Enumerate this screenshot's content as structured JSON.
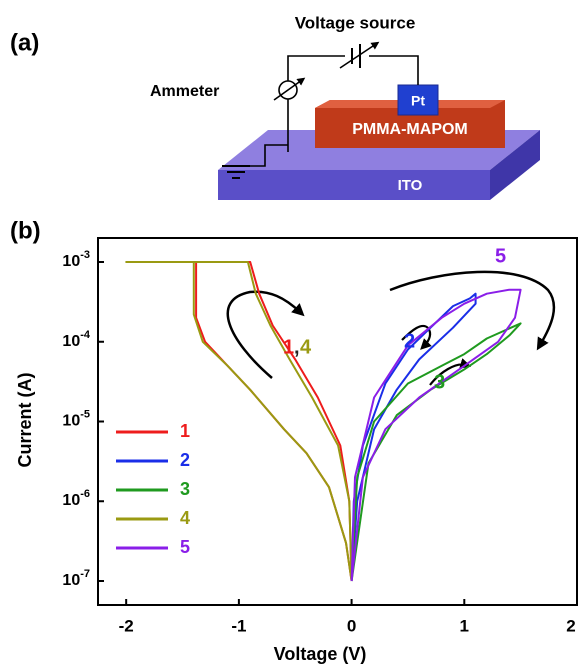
{
  "diagram": {
    "panel_label": "(a)",
    "labels": {
      "voltage_source": "Voltage source",
      "ammeter": "Ammeter",
      "electrode": "Pt",
      "film": "PMMA-MAPOM",
      "substrate": "ITO"
    }
  },
  "chart_data": {
    "type": "line",
    "panel_label": "(b)",
    "x_label": "Voltage (V)",
    "y_label": "Current (A)",
    "log_y": true,
    "xlim": [
      -2.25,
      2.0
    ],
    "xticks": [
      -2,
      -1,
      0,
      1,
      2
    ],
    "ylim": [
      5e-08,
      0.002
    ],
    "yticks": [
      {
        "value": 1e-07,
        "label": "10-7"
      },
      {
        "value": 1e-06,
        "label": "10-6"
      },
      {
        "value": 1e-05,
        "label": "10-5"
      },
      {
        "value": 0.0001,
        "label": "10-4"
      },
      {
        "value": 0.001,
        "label": "10-3"
      }
    ],
    "legend_position": "center-left",
    "series": [
      {
        "name": "1",
        "color": "#ee1c1c",
        "x": [
          0,
          -0.02,
          -0.1,
          -0.3,
          -0.5,
          -0.7,
          -0.82,
          -0.9,
          -1.38,
          -1.38,
          -1.3,
          -1.1,
          -0.9,
          -0.6,
          -0.4,
          -0.2,
          -0.05,
          0
        ],
        "values": [
          1e-07,
          1e-06,
          5e-06,
          2e-05,
          6e-05,
          0.00016,
          0.0004,
          0.001,
          0.001,
          0.0002,
          0.0001,
          5e-05,
          2.5e-05,
          8e-06,
          4e-06,
          1.5e-06,
          3e-07,
          1e-07
        ]
      },
      {
        "name": "2",
        "color": "#1a2ee8",
        "x": [
          0,
          0.02,
          0.1,
          0.3,
          0.5,
          0.7,
          0.9,
          1.05,
          1.1,
          1.1,
          0.9,
          0.6,
          0.4,
          0.2,
          0.05,
          0
        ],
        "values": [
          1e-07,
          1e-06,
          5e-06,
          3e-05,
          8e-05,
          0.00015,
          0.00028,
          0.00035,
          0.0004,
          0.0003,
          0.00015,
          6e-05,
          2.5e-05,
          8e-06,
          1e-06,
          1e-07
        ]
      },
      {
        "name": "3",
        "color": "#1f9a1f",
        "x": [
          0,
          0.05,
          0.2,
          0.5,
          0.8,
          1.0,
          1.2,
          1.5,
          1.4,
          1.2,
          1.0,
          0.7,
          0.4,
          0.15,
          0
        ],
        "values": [
          1e-07,
          2e-06,
          1e-05,
          3e-05,
          5e-05,
          7e-05,
          0.00011,
          0.00017,
          0.00012,
          7e-05,
          4.5e-05,
          2.5e-05,
          1.2e-05,
          3e-06,
          1e-07
        ]
      },
      {
        "name": "4",
        "color": "#9a9a12",
        "x": [
          0,
          -0.02,
          -0.12,
          -0.35,
          -0.55,
          -0.72,
          -0.85,
          -0.92,
          -2.0,
          -1.4,
          -1.4,
          -1.32,
          -1.1,
          -0.9,
          -0.6,
          -0.4,
          -0.2,
          -0.05,
          0
        ],
        "values": [
          1e-07,
          1e-06,
          5e-06,
          2e-05,
          6e-05,
          0.00016,
          0.0004,
          0.001,
          0.001,
          0.001,
          0.00022,
          0.0001,
          5e-05,
          2.5e-05,
          8e-06,
          4e-06,
          1.5e-06,
          3e-07,
          1e-07
        ]
      },
      {
        "name": "5",
        "color": "#8a1ee8",
        "x": [
          0,
          0.03,
          0.2,
          0.5,
          0.8,
          1.0,
          1.2,
          1.4,
          1.5,
          1.45,
          1.3,
          1.0,
          0.6,
          0.3,
          0.1,
          0
        ],
        "values": [
          1e-07,
          2e-06,
          2e-05,
          9e-05,
          0.0002,
          0.0003,
          0.0004,
          0.00045,
          0.00045,
          0.0002,
          0.0001,
          5e-05,
          2e-05,
          8e-06,
          2e-06,
          1e-07
        ]
      }
    ],
    "annotations": [
      {
        "text": "1",
        "color": "#ee1c1c"
      },
      {
        "text": ",",
        "color": "#222222"
      },
      {
        "text": "4",
        "color": "#9a9a12"
      },
      {
        "text": "2",
        "color": "#1a2ee8"
      },
      {
        "text": "3",
        "color": "#1f9a1f"
      },
      {
        "text": "5",
        "color": "#8a1ee8"
      }
    ]
  }
}
